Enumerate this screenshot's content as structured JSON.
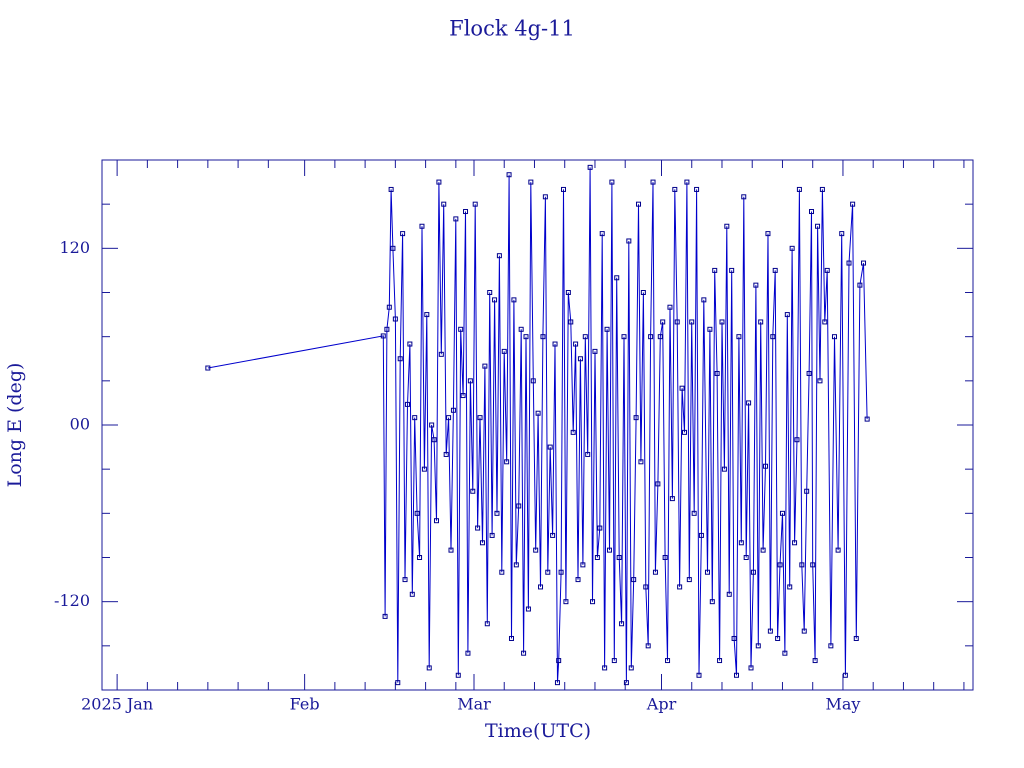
{
  "chart_data": {
    "type": "line",
    "title": "Flock 4g-11",
    "xlabel": "Time(UTC)",
    "ylabel": "Long E (deg)",
    "color": "#0000cc",
    "xlim": [
      -2.5,
      141.5
    ],
    "xticks": [
      {
        "value": 0,
        "label": "2025 Jan"
      },
      {
        "value": 31,
        "label": "Feb"
      },
      {
        "value": 59,
        "label": "Mar"
      },
      {
        "value": 90,
        "label": "Apr"
      },
      {
        "value": 120,
        "label": "May"
      }
    ],
    "xminorticks": [
      5,
      10,
      15,
      20,
      25,
      36,
      41,
      46,
      51,
      56,
      64,
      69,
      74,
      79,
      84,
      95,
      100,
      105,
      110,
      115,
      125,
      130,
      135,
      140
    ],
    "ylim": [
      -180,
      180
    ],
    "yticks": [
      -120,
      {
        "value": 0,
        "label": "00"
      },
      120
    ],
    "yminorticks": [
      -150,
      -90,
      -60,
      -30,
      30,
      60,
      90,
      150
    ],
    "x": [
      15.0,
      44.0,
      44.3,
      44.6,
      45.0,
      45.3,
      45.6,
      46.0,
      46.4,
      46.8,
      47.2,
      47.6,
      48.0,
      48.4,
      48.8,
      49.2,
      49.6,
      50.0,
      50.4,
      50.8,
      51.2,
      51.6,
      52.0,
      52.4,
      52.8,
      53.2,
      53.6,
      54.0,
      54.4,
      54.8,
      55.2,
      55.6,
      56.0,
      56.4,
      56.8,
      57.2,
      57.6,
      58.0,
      58.4,
      58.8,
      59.2,
      59.6,
      60.0,
      60.4,
      60.8,
      61.2,
      61.6,
      62.0,
      62.4,
      62.8,
      63.2,
      63.6,
      64.0,
      64.4,
      64.8,
      65.2,
      65.6,
      66.0,
      66.4,
      66.8,
      67.2,
      67.6,
      68.0,
      68.4,
      68.8,
      69.2,
      69.6,
      70.0,
      70.4,
      70.8,
      71.2,
      71.6,
      72.0,
      72.4,
      72.8,
      73.0,
      73.4,
      73.8,
      74.2,
      74.6,
      75.0,
      75.4,
      75.8,
      76.2,
      76.6,
      77.0,
      77.4,
      77.8,
      78.2,
      78.6,
      79.0,
      79.4,
      79.8,
      80.2,
      80.6,
      81.0,
      81.4,
      81.8,
      82.2,
      82.6,
      83.0,
      83.4,
      83.8,
      84.2,
      84.6,
      85.0,
      85.4,
      85.8,
      86.2,
      86.6,
      87.0,
      87.4,
      87.8,
      88.2,
      88.6,
      89.0,
      89.4,
      89.8,
      90.2,
      90.6,
      91.0,
      91.4,
      91.8,
      92.2,
      92.6,
      93.0,
      93.4,
      93.8,
      94.2,
      94.6,
      95.0,
      95.4,
      95.8,
      96.2,
      96.6,
      97.0,
      97.6,
      98.0,
      98.4,
      98.8,
      99.2,
      99.6,
      100.0,
      100.4,
      100.8,
      101.2,
      101.6,
      102.0,
      102.4,
      102.8,
      103.2,
      103.6,
      104.0,
      104.4,
      104.8,
      105.2,
      105.6,
      106.0,
      106.4,
      106.8,
      107.2,
      107.6,
      108.0,
      108.4,
      108.8,
      109.2,
      109.6,
      110.0,
      110.4,
      110.8,
      111.2,
      111.6,
      112.0,
      112.4,
      112.8,
      113.2,
      113.6,
      114.0,
      114.4,
      114.8,
      115.0,
      115.4,
      115.8,
      116.2,
      116.6,
      117.0,
      117.4,
      118.0,
      118.6,
      119.2,
      119.8,
      120.4,
      121.0,
      121.6,
      122.2,
      122.8,
      123.4,
      124.0
    ],
    "values": [
      38.7,
      60.5,
      -130,
      65,
      80,
      160,
      120,
      72,
      -175,
      45,
      130,
      -105,
      14,
      55,
      -115,
      5,
      -60,
      -90,
      135,
      -30,
      75,
      -165,
      0,
      -10,
      -65,
      165,
      48,
      150,
      -20,
      5,
      -85,
      10,
      140,
      -170,
      65,
      20,
      145,
      -155,
      30,
      -45,
      150,
      -70,
      5,
      -80,
      40,
      -135,
      90,
      -75,
      85,
      -60,
      115,
      -100,
      50,
      -25,
      170,
      -145,
      85,
      -95,
      -55,
      65,
      -155,
      60,
      -125,
      165,
      30,
      -85,
      8,
      -110,
      60,
      155,
      -100,
      -15,
      -75,
      55,
      -175,
      -160,
      -100,
      160,
      -120,
      90,
      70,
      -5,
      55,
      -105,
      45,
      -95,
      60,
      -20,
      175,
      -120,
      50,
      -90,
      -70,
      130,
      -165,
      65,
      -85,
      165,
      -160,
      100,
      -90,
      -135,
      60,
      -175,
      125,
      -165,
      -105,
      5,
      150,
      -25,
      90,
      -110,
      -150,
      60,
      165,
      -100,
      -40,
      60,
      70,
      -90,
      -160,
      80,
      -50,
      160,
      70,
      -110,
      25,
      -5,
      165,
      -105,
      70,
      -60,
      160,
      -170,
      -75,
      85,
      -100,
      65,
      -120,
      105,
      35,
      -160,
      70,
      -30,
      135,
      -115,
      105,
      -145,
      -170,
      60,
      -80,
      155,
      -90,
      15,
      -165,
      -100,
      95,
      -150,
      70,
      -85,
      -28,
      130,
      -140,
      60,
      105,
      -145,
      -95,
      -60,
      -155,
      75,
      -110,
      120,
      -80,
      -10,
      160,
      -95,
      -140,
      -45,
      35,
      145,
      -95,
      -160,
      135,
      30,
      160,
      70,
      105,
      -150,
      60,
      -85,
      130,
      -170,
      110,
      150,
      -145,
      95,
      110,
      4
    ]
  }
}
